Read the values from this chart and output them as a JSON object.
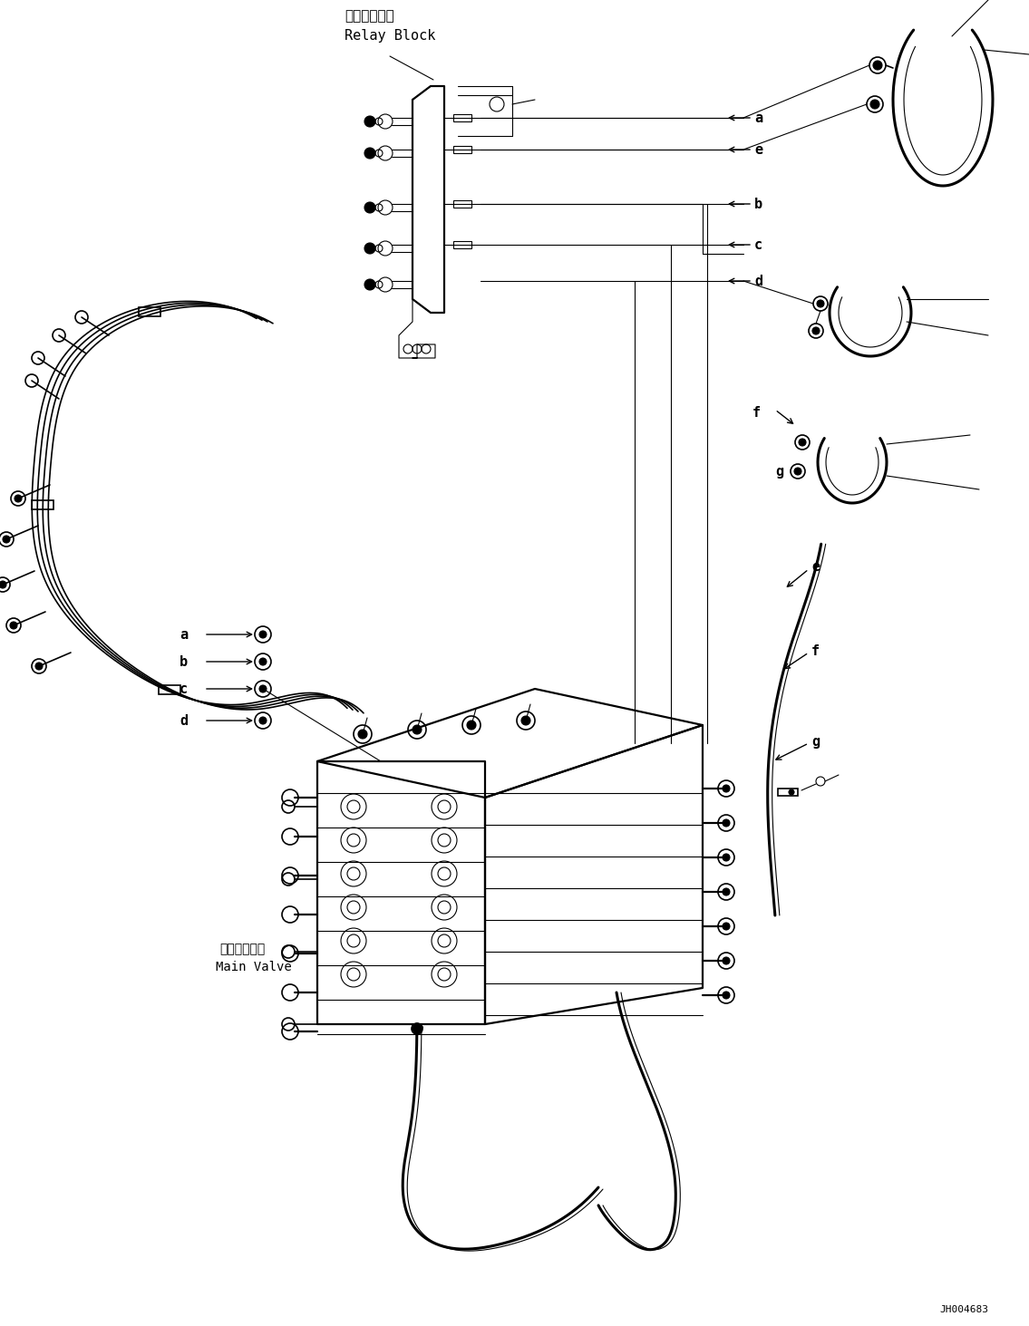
{
  "background_color": "#ffffff",
  "line_color": "#000000",
  "title_jp": "中継ブロック",
  "title_en": "Relay Block",
  "main_valve_jp": "メインバルブ",
  "main_valve_en": "Main Valve",
  "part_id": "JH004683",
  "fig_width": 11.35,
  "fig_height": 14.63,
  "dpi": 100
}
